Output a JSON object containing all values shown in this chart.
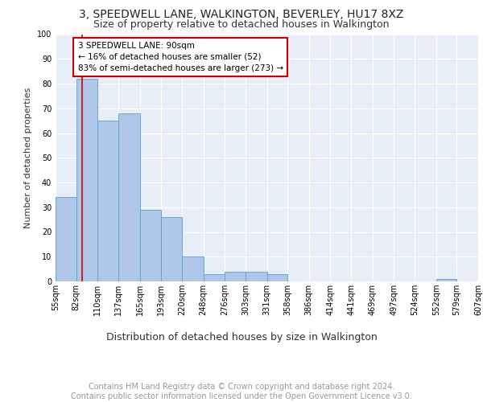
{
  "title": "3, SPEEDWELL LANE, WALKINGTON, BEVERLEY, HU17 8XZ",
  "subtitle": "Size of property relative to detached houses in Walkington",
  "xlabel": "Distribution of detached houses by size in Walkington",
  "ylabel": "Number of detached properties",
  "bar_values": [
    34,
    82,
    65,
    68,
    29,
    26,
    10,
    3,
    4,
    4,
    3,
    0,
    0,
    0,
    0,
    0,
    0,
    0,
    1,
    0
  ],
  "bin_edges": [
    55,
    82,
    110,
    137,
    165,
    193,
    220,
    248,
    276,
    303,
    331,
    358,
    386,
    414,
    441,
    469,
    497,
    524,
    552,
    579,
    607
  ],
  "x_tick_labels": [
    "55sqm",
    "82sqm",
    "110sqm",
    "137sqm",
    "165sqm",
    "193sqm",
    "220sqm",
    "248sqm",
    "276sqm",
    "303sqm",
    "331sqm",
    "358sqm",
    "386sqm",
    "414sqm",
    "441sqm",
    "469sqm",
    "497sqm",
    "524sqm",
    "552sqm",
    "579sqm",
    "607sqm"
  ],
  "bar_color": "#aec6e8",
  "bar_edge_color": "#5a9fd4",
  "property_size": 90,
  "property_line_color": "#cc0000",
  "annotation_text": "3 SPEEDWELL LANE: 90sqm\n← 16% of detached houses are smaller (52)\n83% of semi-detached houses are larger (273) →",
  "annotation_box_color": "#ffffff",
  "annotation_box_edge_color": "#cc0000",
  "ylim": [
    0,
    100
  ],
  "yticks": [
    0,
    10,
    20,
    30,
    40,
    50,
    60,
    70,
    80,
    90,
    100
  ],
  "background_color": "#e8eef8",
  "grid_color": "#ffffff",
  "footer_text": "Contains HM Land Registry data © Crown copyright and database right 2024.\nContains public sector information licensed under the Open Government Licence v3.0.",
  "title_fontsize": 10,
  "subtitle_fontsize": 9,
  "xlabel_fontsize": 9,
  "ylabel_fontsize": 8,
  "footer_fontsize": 7,
  "tick_fontsize": 7,
  "annot_fontsize": 7.5
}
